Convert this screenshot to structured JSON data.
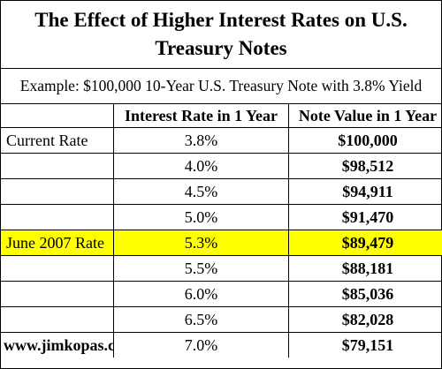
{
  "title": "The Effect of Higher Interest Rates on U.S. Treasury Notes",
  "example": "Example: $100,000 10-Year U.S. Treasury Note with 3.8% Yield",
  "columns": [
    "",
    "Interest Rate in 1 Year",
    "Note Value in 1 Year"
  ],
  "rows": [
    {
      "label": "Current Rate",
      "rate": "3.8%",
      "value": "$100,000"
    },
    {
      "label": "",
      "rate": "4.0%",
      "value": "$98,512"
    },
    {
      "label": "",
      "rate": "4.5%",
      "value": "$94,911"
    },
    {
      "label": "",
      "rate": "5.0%",
      "value": "$91,470"
    },
    {
      "label": "June 2007 Rate",
      "rate": "5.3%",
      "value": "$89,479"
    },
    {
      "label": "",
      "rate": "5.5%",
      "value": "$88,181"
    },
    {
      "label": "",
      "rate": "6.0%",
      "value": "$85,036"
    },
    {
      "label": "",
      "rate": "6.5%",
      "value": "$82,028"
    },
    {
      "label": "www.jimkopas.com",
      "rate": "7.0%",
      "value": "$79,151"
    }
  ],
  "highlight_color": "#ffff00"
}
